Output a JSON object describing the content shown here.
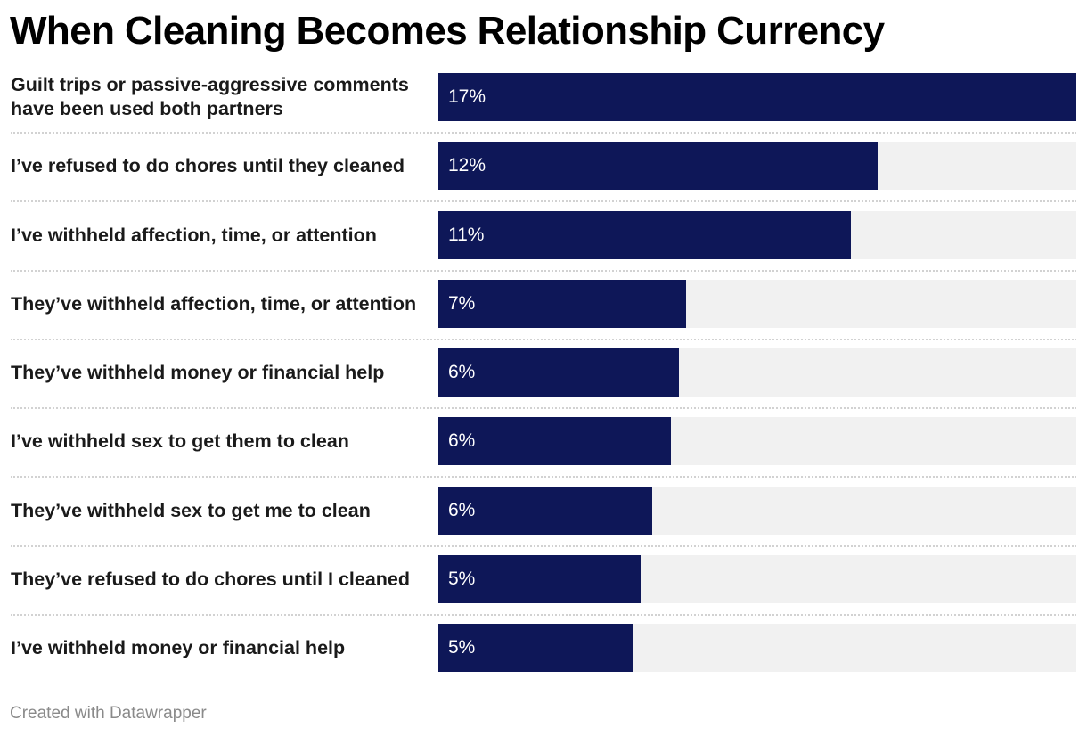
{
  "chart_data": {
    "type": "bar",
    "orientation": "horizontal",
    "title": "When Cleaning Becomes Relationship Currency",
    "unit": "%",
    "categories": [
      "Guilt trips or passive-aggressive comments have been used both partners",
      "I’ve refused to do chores until they cleaned",
      "I’ve withheld affection, time, or attention",
      "They’ve withheld affection, time, or attention",
      "They’ve withheld money or financial help",
      "I’ve withheld sex to get them to clean",
      "They’ve withheld sex to get me to clean",
      "They’ve refused to do chores until I cleaned",
      "I’ve withheld money or financial help"
    ],
    "values": [
      17.0,
      11.7,
      11.0,
      6.6,
      6.4,
      6.2,
      5.7,
      5.4,
      5.2
    ],
    "value_labels": [
      "17%",
      "12%",
      "11%",
      "7%",
      "6%",
      "6%",
      "6%",
      "5%",
      "5%"
    ],
    "xlim": [
      0,
      17
    ],
    "grid": false,
    "legend": "none"
  },
  "colors": {
    "bar": "#0e1758",
    "track": "#f1f1f1",
    "value_text": "#ffffff",
    "separator": "#d2d2d2"
  },
  "footer": "Created with Datawrapper"
}
